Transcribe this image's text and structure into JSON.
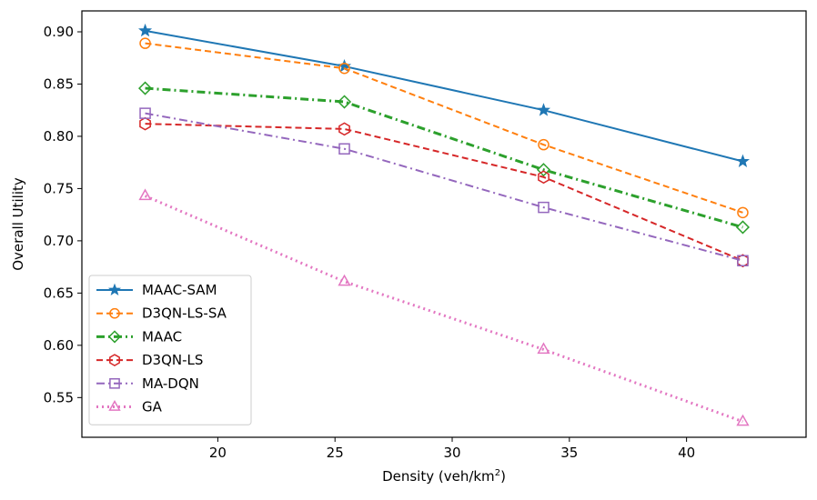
{
  "chart_data": {
    "type": "line",
    "title": "",
    "xlabel": "Density (veh/km",
    "xlabel_sup": "2",
    "xlabel_suffix": ")",
    "ylabel": "Overall Utility",
    "x": [
      16.9,
      25.4,
      33.9,
      42.4
    ],
    "xlim": [
      14.2,
      45.1
    ],
    "ylim": [
      0.512,
      0.92
    ],
    "xticks": [
      20,
      25,
      30,
      35,
      40
    ],
    "xtick_labels": [
      "20",
      "25",
      "30",
      "35",
      "40"
    ],
    "yticks": [
      0.55,
      0.6,
      0.65,
      0.7,
      0.75,
      0.8,
      0.85,
      0.9
    ],
    "ytick_labels": [
      "0.55",
      "0.60",
      "0.65",
      "0.70",
      "0.75",
      "0.80",
      "0.85",
      "0.90"
    ],
    "grid": false,
    "legend_position": "bottom-left",
    "series": [
      {
        "name": "MAAC-SAM",
        "values": [
          0.901,
          0.867,
          0.825,
          0.776
        ],
        "color": "#1f77b4",
        "marker": "star",
        "dash": "solid"
      },
      {
        "name": "D3QN-LS-SA",
        "values": [
          0.889,
          0.865,
          0.792,
          0.727
        ],
        "color": "#ff7f0e",
        "marker": "circle",
        "dash": "dashed"
      },
      {
        "name": "MAAC",
        "values": [
          0.846,
          0.833,
          0.768,
          0.713
        ],
        "color": "#2ca02c",
        "marker": "diamond",
        "dash": "dashdot"
      },
      {
        "name": "D3QN-LS",
        "values": [
          0.812,
          0.807,
          0.761,
          0.681
        ],
        "color": "#d62728",
        "marker": "hexagon",
        "dash": "dashed"
      },
      {
        "name": "MA-DQN",
        "values": [
          0.822,
          0.788,
          0.732,
          0.681
        ],
        "color": "#9467bd",
        "marker": "square",
        "dash": "dashdot-thin"
      },
      {
        "name": "GA",
        "values": [
          0.743,
          0.661,
          0.596,
          0.527
        ],
        "color": "#e377c2",
        "marker": "triangle",
        "dash": "dotted"
      }
    ]
  }
}
